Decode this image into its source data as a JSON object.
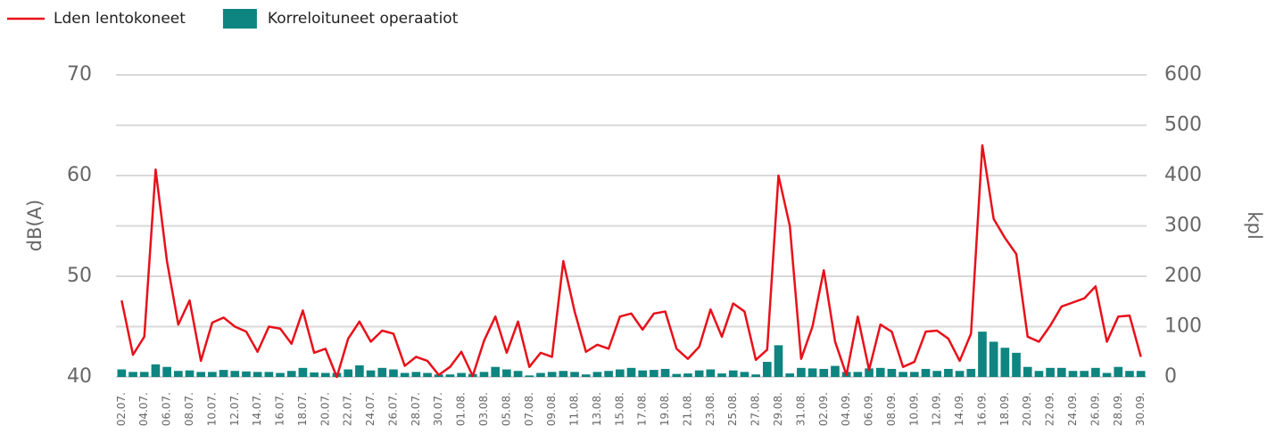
{
  "chart_data": {
    "type": "bar_line",
    "y_label": "dB(A)",
    "y2_label": "kpl",
    "categories": [
      "02.07.",
      null,
      "04.07.",
      null,
      "06.07.",
      null,
      "08.07.",
      null,
      "10.07.",
      null,
      "12.07.",
      null,
      "14.07.",
      null,
      "16.07.",
      null,
      "18.07.",
      null,
      "20.07.",
      null,
      "22.07.",
      null,
      "24.07.",
      null,
      "26.07.",
      null,
      "28.07.",
      null,
      "30.07.",
      null,
      "01.08.",
      null,
      "03.08.",
      null,
      "05.08.",
      null,
      "07.08.",
      null,
      "09.08.",
      null,
      "11.08.",
      null,
      "13.08.",
      null,
      "15.08.",
      null,
      "17.08.",
      null,
      "19.08.",
      null,
      "21.08.",
      null,
      "23.08.",
      null,
      "25.08.",
      null,
      "27.08.",
      null,
      "29.08.",
      null,
      "31.08.",
      null,
      "02.09.",
      null,
      "04.09.",
      null,
      "06.09.",
      null,
      "08.09.",
      null,
      "10.09.",
      null,
      "12.09.",
      null,
      "14.09.",
      null,
      "16.09.",
      null,
      "18.09.",
      null,
      "20.09.",
      null,
      "22.09.",
      null,
      "24.09.",
      null,
      "26.09.",
      null,
      "28.09.",
      null,
      "30.09."
    ],
    "series": [
      {
        "name": "Lden lentokoneet",
        "type": "line",
        "axis": "y",
        "color": "#e8101a",
        "values": [
          47.6,
          42.2,
          44.0,
          60.6,
          51.5,
          45.2,
          47.6,
          41.6,
          45.4,
          45.9,
          45.0,
          44.5,
          42.5,
          45.0,
          44.8,
          43.3,
          46.6,
          42.4,
          42.8,
          40.0,
          43.8,
          45.5,
          43.5,
          44.6,
          44.3,
          41.1,
          42.0,
          41.6,
          40.2,
          41.0,
          42.5,
          40.1,
          43.6,
          46.0,
          42.4,
          45.5,
          41.0,
          42.4,
          42.0,
          51.5,
          46.5,
          42.5,
          43.2,
          42.8,
          46.0,
          46.3,
          44.7,
          46.3,
          46.5,
          42.8,
          41.8,
          43.0,
          46.7,
          44.0,
          47.3,
          46.5,
          41.7,
          42.7,
          60.0,
          55.0,
          41.8,
          45.0,
          50.6,
          43.5,
          40.2,
          46.0,
          40.7,
          45.2,
          44.5,
          41.0,
          41.5,
          44.5,
          44.6,
          43.8,
          41.6,
          44.3,
          63.0,
          55.7,
          53.8,
          52.2,
          44.0,
          43.5,
          45.1,
          47.0,
          47.4,
          47.8,
          49.0,
          43.5,
          46.0,
          46.1,
          42.0
        ]
      },
      {
        "name": "Korreloituneet operaatiot",
        "type": "bar",
        "axis": "y2",
        "color": "#0e8580",
        "values": [
          15,
          10,
          10,
          25,
          20,
          12,
          13,
          10,
          10,
          14,
          12,
          11,
          10,
          10,
          8,
          12,
          18,
          9,
          8,
          8,
          15,
          23,
          13,
          18,
          15,
          8,
          10,
          8,
          5,
          5,
          8,
          6,
          10,
          20,
          15,
          12,
          3,
          8,
          10,
          12,
          10,
          5,
          10,
          12,
          15,
          18,
          13,
          14,
          16,
          6,
          7,
          13,
          15,
          7,
          13,
          10,
          5,
          30,
          63,
          7,
          18,
          17,
          16,
          22,
          10,
          10,
          17,
          18,
          16,
          10,
          10,
          16,
          12,
          16,
          12,
          16,
          90,
          70,
          58,
          48,
          20,
          12,
          18,
          18,
          12,
          12,
          18,
          8,
          20,
          12,
          12
        ]
      }
    ],
    "ylim": [
      40,
      70
    ],
    "yticks": [
      40,
      50,
      60,
      70
    ],
    "y2lim": [
      0,
      600
    ],
    "y2ticks": [
      0,
      100,
      200,
      300,
      400,
      500,
      600
    ],
    "grid": true,
    "legend": "top-left"
  }
}
